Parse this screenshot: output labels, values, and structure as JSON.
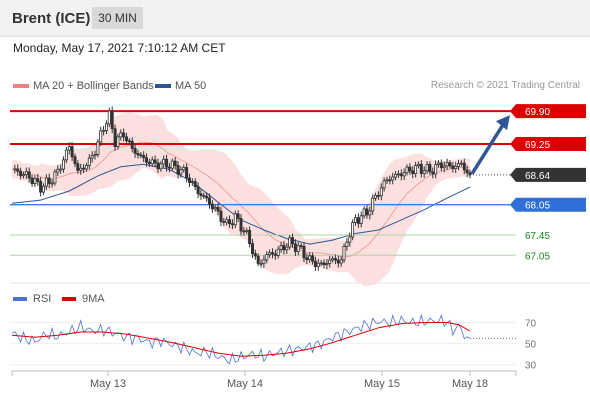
{
  "header": {
    "title": "Brent (ICE)",
    "timeframe": "30 MIN"
  },
  "datetime": "Monday, May 17, 2021 7:10:12 AM CET",
  "legend": {
    "ma_bb": {
      "label": "MA 20 + Bollinger Bands",
      "color": "#f08080"
    },
    "ma50": {
      "label": "MA 50",
      "color": "#2f5597"
    }
  },
  "rsi_legend": {
    "rsi": {
      "label": "RSI",
      "color": "#4a72d8"
    },
    "ma9": {
      "label": "9MA",
      "color": "#e00000"
    }
  },
  "credit": "Research © 2021 Trading Central",
  "chart_data": [
    {
      "type": "candlestick",
      "title": "Brent (ICE)",
      "ylim": [
        66.6,
        70.2
      ],
      "x_labels": [
        "May 13",
        "May 14",
        "May 15",
        "May 18"
      ],
      "levels": [
        {
          "value": 69.9,
          "label": "69.90",
          "style": "resistance-box",
          "color": "#dd0000"
        },
        {
          "value": 69.25,
          "label": "69.25",
          "style": "resistance-box",
          "color": "#dd0000"
        },
        {
          "value": 68.64,
          "label": "68.64",
          "style": "last-price",
          "color": "#333333"
        },
        {
          "value": 68.05,
          "label": "68.05",
          "style": "pivot-box",
          "color": "#2e6fd8"
        },
        {
          "value": 67.45,
          "label": "67.45",
          "style": "support-line",
          "color": "#1a8a1a"
        },
        {
          "value": 67.05,
          "label": "67.05",
          "style": "support-line",
          "color": "#1a8a1a"
        }
      ],
      "price_path": [
        [
          0,
          68.75
        ],
        [
          6,
          68.6
        ],
        [
          10,
          68.4
        ],
        [
          13,
          68.5
        ],
        [
          16,
          68.7
        ],
        [
          20,
          69.2
        ],
        [
          23,
          68.7
        ],
        [
          27,
          68.9
        ],
        [
          30,
          69.25
        ],
        [
          32,
          69.6
        ],
        [
          34,
          69.8
        ],
        [
          36,
          69.3
        ],
        [
          39,
          69.45
        ],
        [
          42,
          69.15
        ],
        [
          46,
          68.95
        ],
        [
          50,
          68.85
        ],
        [
          55,
          68.85
        ],
        [
          60,
          68.7
        ],
        [
          65,
          68.3
        ],
        [
          68,
          68.15
        ],
        [
          71,
          67.95
        ],
        [
          75,
          67.65
        ],
        [
          78,
          67.8
        ],
        [
          82,
          67.45
        ],
        [
          86,
          66.85
        ],
        [
          89,
          67.05
        ],
        [
          92,
          67.1
        ],
        [
          97,
          67.3
        ],
        [
          100,
          67.2
        ],
        [
          104,
          66.95
        ],
        [
          108,
          66.85
        ],
        [
          111,
          66.95
        ],
        [
          115,
          66.95
        ],
        [
          117,
          67.35
        ],
        [
          120,
          67.75
        ],
        [
          124,
          67.9
        ],
        [
          128,
          68.3
        ],
        [
          131,
          68.55
        ],
        [
          134,
          68.62
        ],
        [
          138,
          68.72
        ],
        [
          142,
          68.78
        ],
        [
          146,
          68.72
        ],
        [
          150,
          68.85
        ],
        [
          154,
          68.8
        ],
        [
          157,
          68.85
        ],
        [
          160,
          68.64
        ]
      ],
      "ma50": [
        [
          0,
          68.08
        ],
        [
          10,
          68.14
        ],
        [
          20,
          68.32
        ],
        [
          30,
          68.62
        ],
        [
          38,
          68.8
        ],
        [
          46,
          68.85
        ],
        [
          55,
          68.75
        ],
        [
          63,
          68.5
        ],
        [
          72,
          68.1
        ],
        [
          80,
          67.75
        ],
        [
          88,
          67.55
        ],
        [
          96,
          67.38
        ],
        [
          104,
          67.27
        ],
        [
          112,
          67.35
        ],
        [
          120,
          67.48
        ],
        [
          128,
          67.55
        ],
        [
          136,
          67.75
        ],
        [
          144,
          67.95
        ],
        [
          152,
          68.18
        ],
        [
          160,
          68.4
        ]
      ]
    },
    {
      "type": "line",
      "title": "RSI",
      "ylim": [
        25,
        80
      ],
      "y_ticks": [
        70,
        50,
        30
      ],
      "series": [
        {
          "name": "RSI",
          "values": [
            [
              0,
              60
            ],
            [
              4,
              55
            ],
            [
              8,
              52
            ],
            [
              12,
              59
            ],
            [
              16,
              57
            ],
            [
              20,
              61
            ],
            [
              24,
              66
            ],
            [
              28,
              62
            ],
            [
              32,
              63
            ],
            [
              36,
              60
            ],
            [
              40,
              56
            ],
            [
              44,
              55
            ],
            [
              48,
              51
            ],
            [
              52,
              53
            ],
            [
              56,
              49
            ],
            [
              60,
              46
            ],
            [
              64,
              41
            ],
            [
              68,
              42
            ],
            [
              72,
              38
            ],
            [
              76,
              34
            ],
            [
              80,
              37
            ],
            [
              84,
              40
            ],
            [
              88,
              38
            ],
            [
              92,
              41
            ],
            [
              96,
              43
            ],
            [
              100,
              45
            ],
            [
              104,
              47
            ],
            [
              108,
              50
            ],
            [
              112,
              56
            ],
            [
              116,
              60
            ],
            [
              120,
              64
            ],
            [
              124,
              68
            ],
            [
              128,
              71
            ],
            [
              132,
              70
            ],
            [
              136,
              72
            ],
            [
              140,
              70
            ],
            [
              144,
              71
            ],
            [
              148,
              72
            ],
            [
              152,
              71
            ],
            [
              154,
              62
            ],
            [
              156,
              67
            ],
            [
              158,
              58
            ],
            [
              160,
              55
            ]
          ]
        },
        {
          "name": "9MA",
          "values": [
            [
              0,
              58
            ],
            [
              8,
              56
            ],
            [
              16,
              58
            ],
            [
              24,
              61
            ],
            [
              32,
              61
            ],
            [
              40,
              59
            ],
            [
              48,
              55
            ],
            [
              56,
              51
            ],
            [
              64,
              46
            ],
            [
              72,
              41
            ],
            [
              80,
              38
            ],
            [
              88,
              39
            ],
            [
              96,
              41
            ],
            [
              104,
              45
            ],
            [
              112,
              51
            ],
            [
              120,
              58
            ],
            [
              128,
              65
            ],
            [
              136,
              69
            ],
            [
              144,
              70
            ],
            [
              152,
              70
            ],
            [
              156,
              68
            ],
            [
              160,
              62
            ]
          ]
        }
      ]
    }
  ]
}
